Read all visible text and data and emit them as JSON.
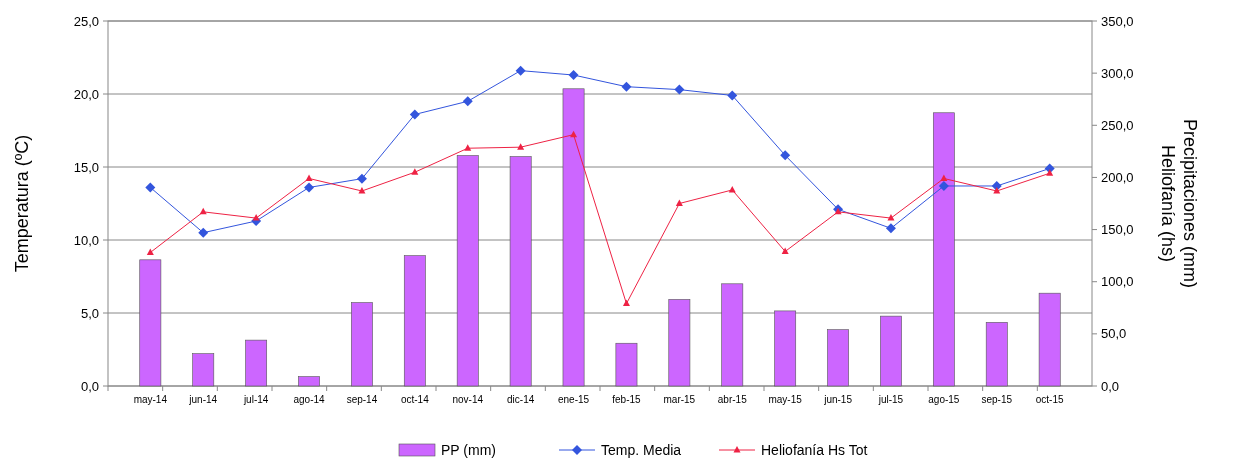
{
  "chart_data": {
    "type": "bar",
    "ylabel": "Temperatura (ºC)",
    "y2label": "Heliofanía (hs)\nPrecipitaciones (mm)",
    "categories": [
      "may-14",
      "jun-14",
      "jul-14",
      "ago-14",
      "sep-14",
      "oct-14",
      "nov-14",
      "dic-14",
      "ene-15",
      "feb-15",
      "mar-15",
      "abr-15",
      "may-15",
      "jun-15",
      "jul-15",
      "ago-15",
      "sep-15",
      "oct-15"
    ],
    "series": [
      {
        "name": "PP (mm)",
        "axis": "y2",
        "color": "#cc66ff",
        "values": [
          121,
          31,
          44,
          9,
          80,
          125,
          221,
          220,
          285,
          41,
          83,
          98,
          72,
          54,
          67,
          262,
          61,
          89
        ]
      },
      {
        "name": "Temp. Media",
        "type": "line",
        "axis": "y",
        "color": "#3355dd",
        "marker": "diamond",
        "values": [
          13.6,
          10.5,
          11.3,
          13.6,
          14.2,
          18.6,
          19.5,
          21.6,
          21.3,
          20.5,
          20.3,
          19.9,
          15.8,
          12.1,
          10.8,
          13.7,
          13.7,
          14.9
        ]
      },
      {
        "name": "Heliofanía Hs Tot",
        "type": "line",
        "axis": "y2",
        "color": "#ee2244",
        "marker": "triangle",
        "values": [
          128,
          167,
          161,
          199,
          187,
          205,
          228,
          229,
          241,
          79,
          175,
          188,
          129,
          167,
          161,
          199,
          187,
          204
        ]
      }
    ],
    "ylim": [
      0,
      25
    ],
    "yticks": [
      {
        "value": 0,
        "label": "0,0"
      },
      {
        "value": 5,
        "label": "5,0"
      },
      {
        "value": 10,
        "label": "10,0"
      },
      {
        "value": 15,
        "label": "15,0"
      },
      {
        "value": 20,
        "label": "20,0"
      },
      {
        "value": 25,
        "label": "25,0"
      }
    ],
    "y2lim": [
      0,
      350
    ],
    "y2ticks": [
      {
        "value": 0,
        "label": "0,0"
      },
      {
        "value": 50,
        "label": "50,0"
      },
      {
        "value": 100,
        "label": "100,0"
      },
      {
        "value": 150,
        "label": "150,0"
      },
      {
        "value": 200,
        "label": "200,0"
      },
      {
        "value": 250,
        "label": "250,0"
      },
      {
        "value": 300,
        "label": "300,0"
      },
      {
        "value": 350,
        "label": "350,0"
      }
    ],
    "grid": "y",
    "legend": "bottom",
    "line_style": "solid"
  }
}
